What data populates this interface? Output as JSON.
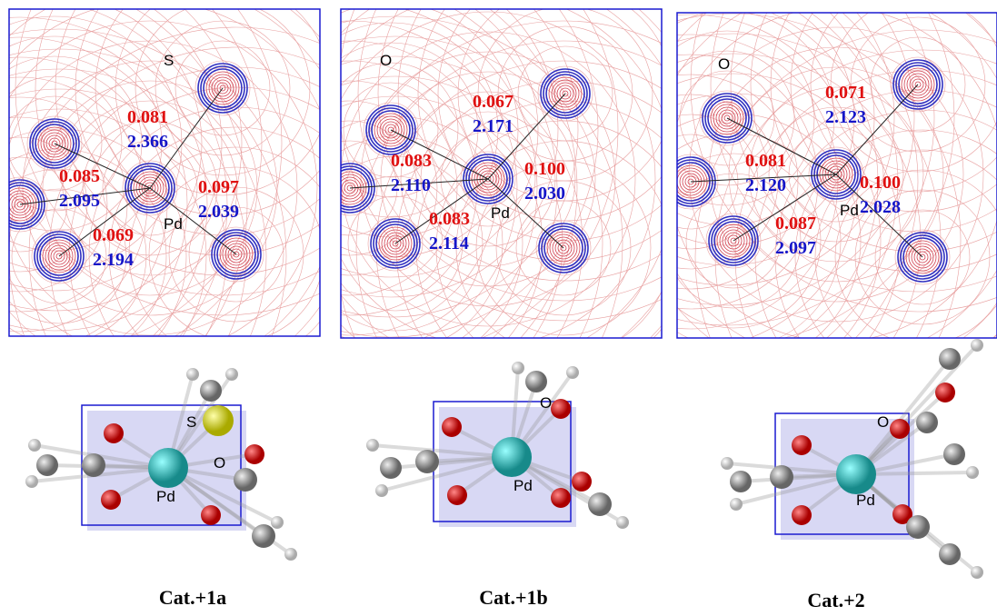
{
  "panels": [
    {
      "caption": "Cat.+1a",
      "map_atom_labels": [
        "S",
        "Pd"
      ],
      "bonds": [
        {
          "density": "0.081",
          "distance": "2.366"
        },
        {
          "density": "0.085",
          "distance": "2.095"
        },
        {
          "density": "0.097",
          "distance": "2.039"
        },
        {
          "density": "0.069",
          "distance": "2.194"
        }
      ],
      "molecule_labels": [
        "S",
        "Pd",
        "O"
      ]
    },
    {
      "caption": "Cat.+1b",
      "map_atom_labels": [
        "O",
        "Pd"
      ],
      "bonds": [
        {
          "density": "0.067",
          "distance": "2.171"
        },
        {
          "density": "0.083",
          "distance": "2.110"
        },
        {
          "density": "0.100",
          "distance": "2.030"
        },
        {
          "density": "0.083",
          "distance": "2.114"
        }
      ],
      "molecule_labels": [
        "O",
        "Pd"
      ]
    },
    {
      "caption": "Cat.+2",
      "map_atom_labels": [
        "O",
        "Pd"
      ],
      "bonds": [
        {
          "density": "0.071",
          "distance": "2.123"
        },
        {
          "density": "0.081",
          "distance": "2.120"
        },
        {
          "density": "0.100",
          "distance": "2.028"
        },
        {
          "density": "0.087",
          "distance": "2.097"
        }
      ],
      "molecule_labels": [
        "O",
        "Pd"
      ]
    }
  ]
}
